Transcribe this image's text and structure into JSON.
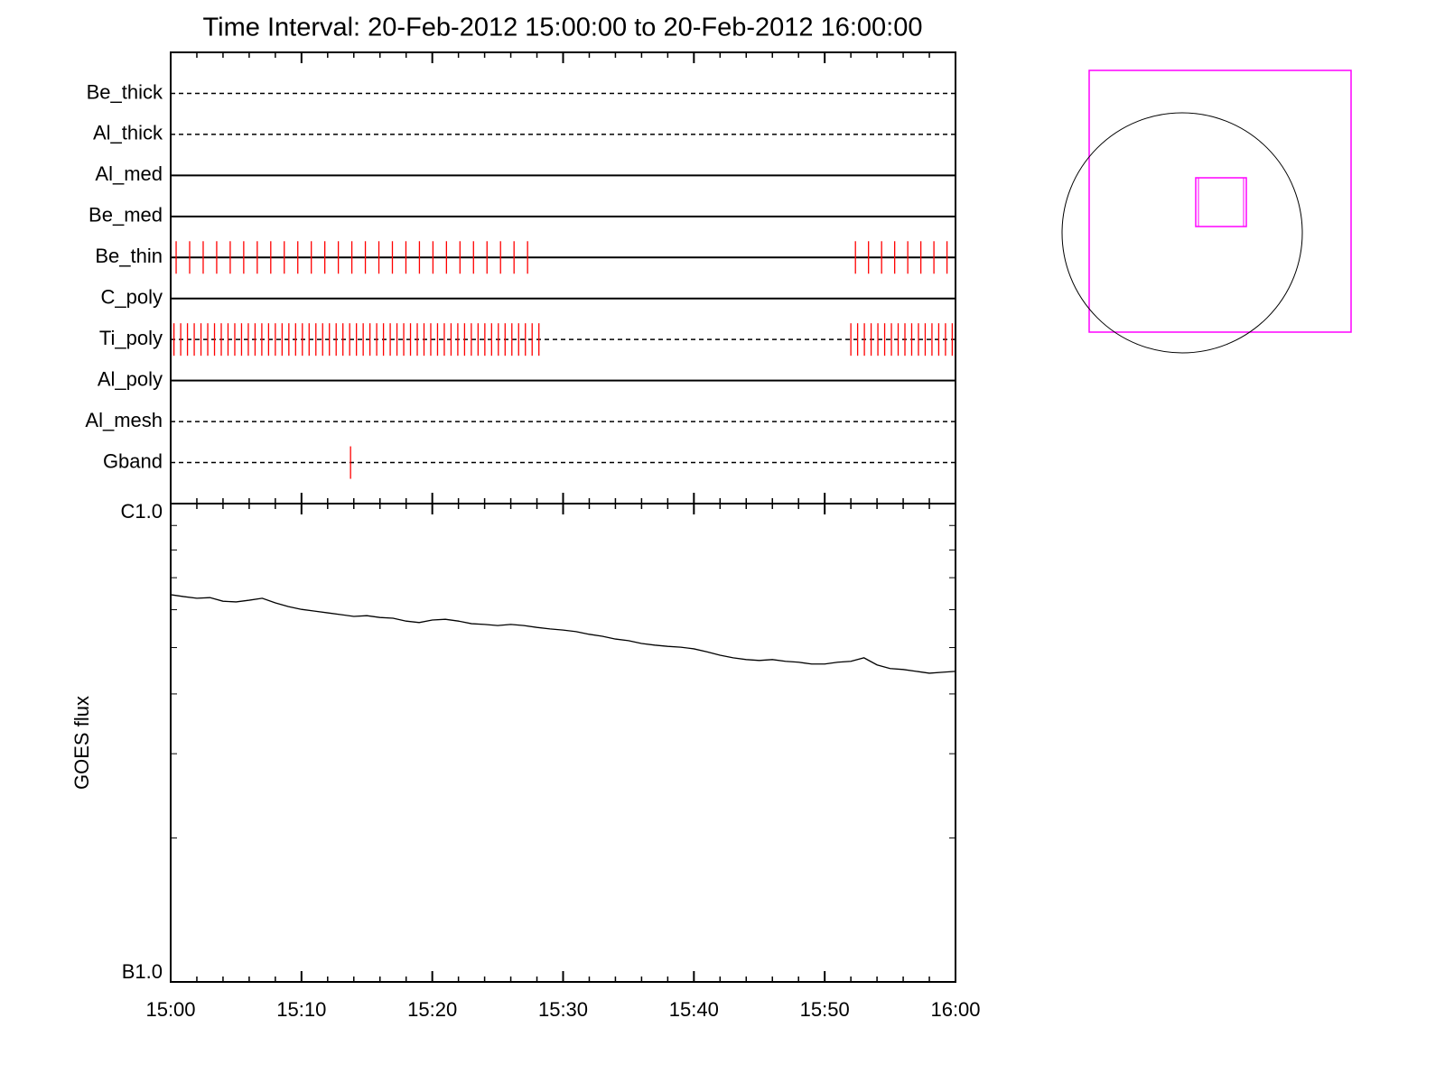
{
  "chart_data": [
    {
      "type": "timeline",
      "title": "Time Interval: 20-Feb-2012 15:00:00 to 20-Feb-2012 16:00:00",
      "color": "#ff0000",
      "series": [
        {
          "name": "Be_thick",
          "line": "dashed",
          "x": []
        },
        {
          "name": "Al_thick",
          "line": "dashed",
          "x": []
        },
        {
          "name": "Al_med",
          "line": "solid",
          "x": []
        },
        {
          "name": "Be_med",
          "line": "solid",
          "x": []
        },
        {
          "name": "Be_thin",
          "line": "solid",
          "x": [
            "15:00:25",
            "15:01:27",
            "15:02:29",
            "15:03:31",
            "15:04:33",
            "15:05:35",
            "15:06:37",
            "15:07:39",
            "15:08:41",
            "15:09:43",
            "15:10:45",
            "15:11:47",
            "15:12:49",
            "15:13:51",
            "15:14:53",
            "15:15:55",
            "15:16:57",
            "15:17:59",
            "15:19:01",
            "15:20:03",
            "15:21:05",
            "15:22:07",
            "15:23:09",
            "15:24:11",
            "15:25:13",
            "15:26:15",
            "15:27:17",
            "15:52:21",
            "15:53:21",
            "15:54:21",
            "15:55:21",
            "15:56:21",
            "15:57:21",
            "15:58:21",
            "15:59:21"
          ]
        },
        {
          "name": "C_poly",
          "line": "solid",
          "x": []
        },
        {
          "name": "Ti_poly",
          "line": "dashed",
          "x": [
            "15:00:15",
            "15:00:46",
            "15:01:17",
            "15:01:48",
            "15:02:19",
            "15:02:50",
            "15:03:21",
            "15:03:52",
            "15:04:23",
            "15:04:54",
            "15:05:25",
            "15:05:56",
            "15:06:27",
            "15:06:58",
            "15:07:29",
            "15:08:00",
            "15:08:31",
            "15:09:02",
            "15:09:33",
            "15:10:04",
            "15:10:35",
            "15:11:06",
            "15:11:37",
            "15:12:08",
            "15:12:39",
            "15:13:10",
            "15:13:41",
            "15:14:12",
            "15:14:43",
            "15:15:14",
            "15:15:45",
            "15:16:16",
            "15:16:47",
            "15:17:18",
            "15:17:49",
            "15:18:20",
            "15:18:51",
            "15:19:22",
            "15:19:53",
            "15:20:24",
            "15:20:55",
            "15:21:26",
            "15:21:57",
            "15:22:28",
            "15:22:59",
            "15:23:30",
            "15:24:01",
            "15:24:32",
            "15:25:03",
            "15:25:34",
            "15:26:05",
            "15:26:36",
            "15:27:07",
            "15:27:38",
            "15:28:09",
            "15:52:00",
            "15:52:31",
            "15:53:02",
            "15:53:33",
            "15:54:04",
            "15:54:35",
            "15:55:06",
            "15:55:37",
            "15:56:08",
            "15:56:39",
            "15:57:10",
            "15:57:41",
            "15:58:12",
            "15:58:43",
            "15:59:14",
            "15:59:45"
          ]
        },
        {
          "name": "Al_poly",
          "line": "solid",
          "x": []
        },
        {
          "name": "Al_mesh",
          "line": "dashed",
          "x": []
        },
        {
          "name": "Gband",
          "line": "dashed",
          "x": [
            "15:13:45"
          ]
        }
      ]
    },
    {
      "type": "line",
      "ylabel": "GOES flux",
      "log_y": true,
      "ylim": [
        1e-07,
        1e-06
      ],
      "yticks": [
        {
          "value": 1e-07,
          "label": "B1.0"
        },
        {
          "value": 1e-06,
          "label": "C1.0"
        }
      ],
      "xlim": [
        "15:00",
        "16:00"
      ],
      "xticks": [
        "15:00",
        "15:10",
        "15:20",
        "15:30",
        "15:40",
        "15:50",
        "16:00"
      ],
      "x": [
        "15:00",
        "15:01",
        "15:02",
        "15:03",
        "15:04",
        "15:05",
        "15:06",
        "15:07",
        "15:08",
        "15:09",
        "15:10",
        "15:11",
        "15:12",
        "15:13",
        "15:14",
        "15:15",
        "15:16",
        "15:17",
        "15:18",
        "15:19",
        "15:20",
        "15:21",
        "15:22",
        "15:23",
        "15:24",
        "15:25",
        "15:26",
        "15:27",
        "15:28",
        "15:29",
        "15:30",
        "15:31",
        "15:32",
        "15:33",
        "15:34",
        "15:35",
        "15:36",
        "15:37",
        "15:38",
        "15:39",
        "15:40",
        "15:41",
        "15:42",
        "15:43",
        "15:44",
        "15:45",
        "15:46",
        "15:47",
        "15:48",
        "15:49",
        "15:50",
        "15:51",
        "15:52",
        "15:53",
        "15:54",
        "15:55",
        "15:56",
        "15:57",
        "15:58",
        "15:59",
        "16:00"
      ],
      "series": [
        {
          "color": "#000000",
          "values": [
            6.45e-07,
            6.39e-07,
            6.34e-07,
            6.36e-07,
            6.25e-07,
            6.23e-07,
            6.28e-07,
            6.34e-07,
            6.2e-07,
            6.09e-07,
            6.01e-07,
            5.96e-07,
            5.91e-07,
            5.86e-07,
            5.81e-07,
            5.83e-07,
            5.78e-07,
            5.76e-07,
            5.68e-07,
            5.64e-07,
            5.71e-07,
            5.73e-07,
            5.68e-07,
            5.61e-07,
            5.59e-07,
            5.56e-07,
            5.59e-07,
            5.56e-07,
            5.51e-07,
            5.47e-07,
            5.44e-07,
            5.4e-07,
            5.33e-07,
            5.28e-07,
            5.21e-07,
            5.17e-07,
            5.1e-07,
            5.06e-07,
            5.03e-07,
            5.01e-07,
            4.97e-07,
            4.9e-07,
            4.82e-07,
            4.76e-07,
            4.72e-07,
            4.7e-07,
            4.72e-07,
            4.68e-07,
            4.66e-07,
            4.62e-07,
            4.62e-07,
            4.66e-07,
            4.68e-07,
            4.76e-07,
            4.6e-07,
            4.52e-07,
            4.5e-07,
            4.46e-07,
            4.42e-07,
            4.44e-07,
            4.46e-07
          ]
        }
      ]
    }
  ]
}
